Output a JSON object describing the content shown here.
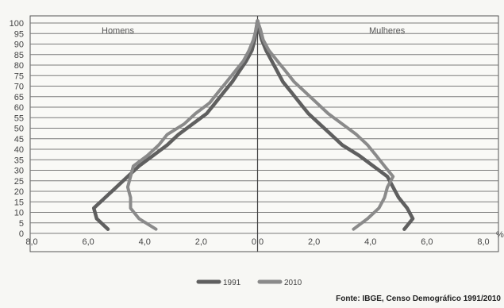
{
  "chart_data": {
    "type": "line",
    "title": "",
    "left_label": "Homens",
    "right_label": "Mulheres",
    "unit_label": "%",
    "x_ticks": [
      "8,0",
      "6,0",
      "4,0",
      "2,0",
      "0,0",
      "2,0",
      "4,0",
      "6,0",
      "8,0"
    ],
    "y_ticks": [
      "0",
      "5",
      "10",
      "15",
      "20",
      "25",
      "30",
      "35",
      "40",
      "45",
      "50",
      "55",
      "60",
      "65",
      "70",
      "75",
      "80",
      "85",
      "90",
      "95",
      "100"
    ],
    "xlim": [
      -8,
      8
    ],
    "ylim": [
      0,
      100
    ],
    "grid": true,
    "legend_position": "bottom",
    "series": [
      {
        "name": "1991",
        "color": "#5f5f5f",
        "male": [
          [
            5.3,
            2
          ],
          [
            5.7,
            7
          ],
          [
            5.8,
            12
          ],
          [
            5.4,
            17
          ],
          [
            5.0,
            22
          ],
          [
            4.6,
            27
          ],
          [
            4.2,
            32
          ],
          [
            3.7,
            37
          ],
          [
            3.2,
            42
          ],
          [
            2.8,
            47
          ],
          [
            2.3,
            52
          ],
          [
            1.8,
            57
          ],
          [
            1.5,
            62
          ],
          [
            1.2,
            67
          ],
          [
            0.9,
            72
          ],
          [
            0.65,
            77
          ],
          [
            0.4,
            82
          ],
          [
            0.2,
            87
          ],
          [
            0.1,
            92
          ],
          [
            0.05,
            97
          ],
          [
            0.0,
            101
          ]
        ],
        "female": [
          [
            5.2,
            2
          ],
          [
            5.5,
            7
          ],
          [
            5.3,
            12
          ],
          [
            5.0,
            17
          ],
          [
            4.8,
            22
          ],
          [
            4.6,
            27
          ],
          [
            4.1,
            32
          ],
          [
            3.6,
            37
          ],
          [
            3.0,
            42
          ],
          [
            2.6,
            47
          ],
          [
            2.2,
            52
          ],
          [
            1.8,
            57
          ],
          [
            1.5,
            62
          ],
          [
            1.2,
            67
          ],
          [
            0.9,
            72
          ],
          [
            0.7,
            77
          ],
          [
            0.5,
            82
          ],
          [
            0.3,
            87
          ],
          [
            0.15,
            92
          ],
          [
            0.05,
            97
          ],
          [
            0.0,
            101
          ]
        ]
      },
      {
        "name": "2010",
        "color": "#8a8a8a",
        "male": [
          [
            3.6,
            2
          ],
          [
            4.2,
            7
          ],
          [
            4.5,
            12
          ],
          [
            4.5,
            17
          ],
          [
            4.6,
            22
          ],
          [
            4.5,
            27
          ],
          [
            4.4,
            32
          ],
          [
            3.9,
            37
          ],
          [
            3.5,
            42
          ],
          [
            3.2,
            47
          ],
          [
            2.6,
            52
          ],
          [
            2.2,
            57
          ],
          [
            1.7,
            62
          ],
          [
            1.4,
            67
          ],
          [
            1.1,
            72
          ],
          [
            0.8,
            77
          ],
          [
            0.5,
            82
          ],
          [
            0.3,
            87
          ],
          [
            0.15,
            92
          ],
          [
            0.05,
            97
          ],
          [
            0.0,
            101
          ]
        ],
        "female": [
          [
            3.4,
            2
          ],
          [
            3.9,
            7
          ],
          [
            4.3,
            12
          ],
          [
            4.5,
            17
          ],
          [
            4.6,
            22
          ],
          [
            4.8,
            27
          ],
          [
            4.5,
            32
          ],
          [
            4.2,
            37
          ],
          [
            3.9,
            42
          ],
          [
            3.5,
            47
          ],
          [
            3.0,
            52
          ],
          [
            2.5,
            57
          ],
          [
            2.1,
            62
          ],
          [
            1.7,
            67
          ],
          [
            1.3,
            72
          ],
          [
            1.0,
            77
          ],
          [
            0.7,
            82
          ],
          [
            0.4,
            87
          ],
          [
            0.2,
            92
          ],
          [
            0.1,
            97
          ],
          [
            0.0,
            101
          ]
        ]
      }
    ],
    "source": "Fonte: IBGE, Censo Demográfico 1991/2010"
  }
}
